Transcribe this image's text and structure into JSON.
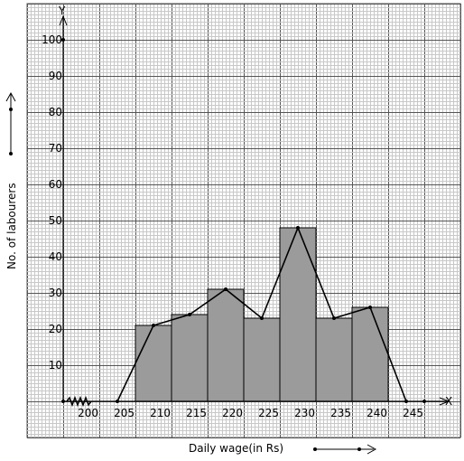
{
  "chart_data": {
    "type": "bar",
    "overlay": "frequency-polygon",
    "title": "",
    "xlabel": "Daily wage(in Rs)",
    "ylabel": "No. of labourers",
    "x_axis_letter": "X",
    "y_axis_letter": "Y",
    "x_ticks": [
      "200",
      "205",
      "210",
      "215",
      "220",
      "225",
      "230",
      "235",
      "240",
      "245"
    ],
    "y_ticks": [
      "10",
      "20",
      "30",
      "40",
      "50",
      "60",
      "70",
      "80",
      "90",
      "100"
    ],
    "xlim": [
      195,
      252
    ],
    "ylim": [
      -10,
      110
    ],
    "grid": true,
    "bars": [
      {
        "from": 205,
        "to": 210,
        "value": 21
      },
      {
        "from": 210,
        "to": 215,
        "value": 24
      },
      {
        "from": 215,
        "to": 220,
        "value": 31
      },
      {
        "from": 220,
        "to": 225,
        "value": 23
      },
      {
        "from": 225,
        "to": 230,
        "value": 48
      },
      {
        "from": 230,
        "to": 235,
        "value": 23
      },
      {
        "from": 235,
        "to": 240,
        "value": 26
      }
    ],
    "polygon": {
      "x": [
        202.5,
        207.5,
        212.5,
        217.5,
        222.5,
        227.5,
        232.5,
        237.5,
        242.5
      ],
      "y": [
        0,
        21,
        24,
        31,
        23,
        48,
        23,
        26,
        0
      ]
    },
    "colors": {
      "bar_fill": "#9b9b9b",
      "grid_minor": "#c8c8c8",
      "grid_major": "#555555",
      "line": "#000000"
    }
  }
}
